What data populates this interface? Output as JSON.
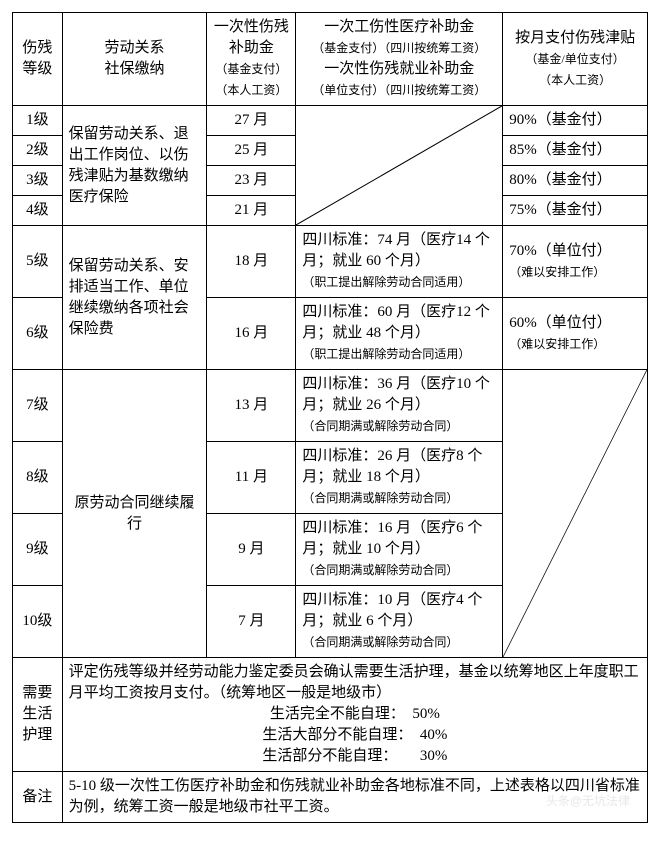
{
  "colors": {
    "border": "#000000",
    "text": "#000000",
    "bg": "#ffffff",
    "watermark": "#e8e8e8"
  },
  "col_widths": [
    "48px",
    "140px",
    "86px",
    "200px",
    "140px"
  ],
  "header": {
    "c1": "伤残\n等级",
    "c2": "劳动关系\n社保缴纳",
    "c3_l1": "一次性伤残补助金",
    "c3_l2": "（基金支付）",
    "c3_l3": "（本人工资）",
    "c4_l1": "一次工伤性医疗补助金",
    "c4_l2": "（基金支付）（四川按统筹工资）",
    "c4_l3": "一次性伤残就业补助金",
    "c4_l4": "（单位支付）（四川按统筹工资）",
    "c5_l1": "按月支付伤残津贴",
    "c5_l2": "（基金/单位支付）",
    "c5_l3": "（本人工资）"
  },
  "group14_relation": "保留劳动关系、退出工作岗位、以伤残津贴为基数缴纳医疗保险",
  "rows14": [
    {
      "lvl": "1级",
      "once": "27 月",
      "allow": "90%（基金付）"
    },
    {
      "lvl": "2级",
      "once": "25 月",
      "allow": "85%（基金付）"
    },
    {
      "lvl": "3级",
      "once": "23 月",
      "allow": "80%（基金付）"
    },
    {
      "lvl": "4级",
      "once": "21 月",
      "allow": "75%（基金付）"
    }
  ],
  "group56_relation": "保留劳动关系、安排适当工作、单位继续缴纳各项社会保险费",
  "rows56": [
    {
      "lvl": "5级",
      "once": "18 月",
      "std_l1": "四川标准：74 月（医疗14 个月；就业 60 个月）",
      "std_l2": "（职工提出解除劳动合同适用）",
      "allow_l1": "70%（单位付）",
      "allow_l2": "（难以安排工作）"
    },
    {
      "lvl": "6级",
      "once": "16 月",
      "std_l1": "四川标准：60 月（医疗12 个月；就业 48 个月）",
      "std_l2": "（职工提出解除劳动合同适用）",
      "allow_l1": "60%（单位付）",
      "allow_l2": "（难以安排工作）"
    }
  ],
  "group710_relation": "原劳动合同继续履行",
  "rows710": [
    {
      "lvl": "7级",
      "once": "13 月",
      "std_l1": "四川标准：36 月（医疗10 个月；就业 26 个月）",
      "std_l2": "（合同期满或解除劳动合同）"
    },
    {
      "lvl": "8级",
      "once": "11 月",
      "std_l1": "四川标准：26 月（医疗8 个月；就业 18 个月）",
      "std_l2": "（合同期满或解除劳动合同）"
    },
    {
      "lvl": "9级",
      "once": "9 月",
      "std_l1": "四川标准：16 月（医疗6 个月；就业 10 个月）",
      "std_l2": "（合同期满或解除劳动合同）"
    },
    {
      "lvl": "10级",
      "once": "7 月",
      "std_l1": "四川标准：10 月（医疗4 个月；就业 6 个月）",
      "std_l2": "（合同期满或解除劳动合同）"
    }
  ],
  "care": {
    "label": "需要生活护理",
    "l1": "评定伤残等级并经劳动能力鉴定委员会确认需要生活护理，基金以统筹地区上年度职工月平均工资按月支付。（统筹地区一般是地级市）",
    "l2": "生活完全不能自理：　50%",
    "l3": "生活大部分不能自理：　40%",
    "l4": "生活部分不能自理：　　30%"
  },
  "note": {
    "label": "备注",
    "text": "5-10 级一次性工伤医疗补助金和伤残就业补助金各地标准不同，上述表格以四川省标准为例，统筹工资一般是地级市社平工资。"
  },
  "watermark": "头条@无坑法律"
}
